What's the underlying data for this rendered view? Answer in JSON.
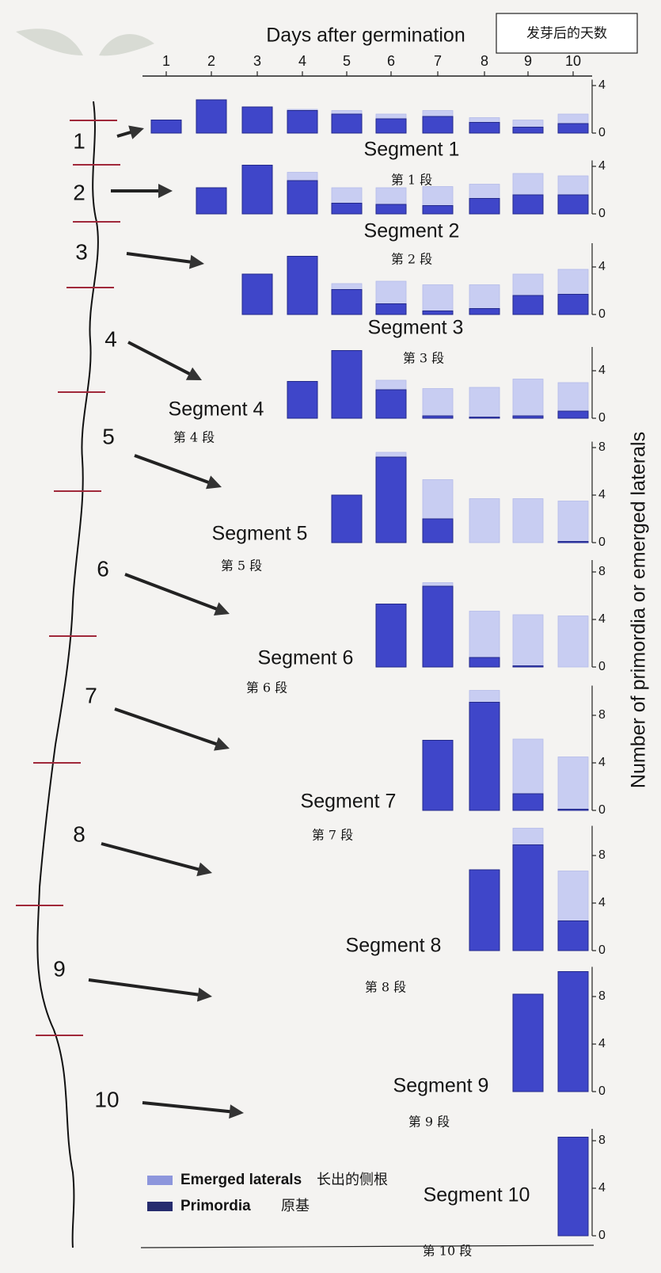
{
  "x_axis": {
    "label": "Days after germination",
    "label_cn": "发芽后的天数",
    "categories": [
      1,
      2,
      3,
      4,
      5,
      6,
      7,
      8,
      9,
      10
    ]
  },
  "y_axis_label": "Number of primordia or emerged laterals",
  "legend": [
    {
      "name": "Emerged laterals",
      "name_cn": "长出的侧根",
      "color": "#c8cdf2"
    },
    {
      "name": "Primordia",
      "name_cn": "原基",
      "color": "#3f46c9"
    }
  ],
  "root_segments": [
    1,
    2,
    3,
    4,
    5,
    6,
    7,
    8,
    9,
    10
  ],
  "chart_data": [
    {
      "type": "bar",
      "title": "Segment 1",
      "subtitle": "第 1 段",
      "ylim": [
        0,
        4.5
      ],
      "yticks": [
        0,
        4
      ],
      "series": [
        {
          "values": [
            1.1,
            2.8,
            2.2,
            1.9,
            1.6,
            1.2,
            1.4,
            0.9,
            0.5,
            0.8
          ]
        },
        {
          "values": [
            0,
            0,
            0,
            0.1,
            0.3,
            0.4,
            0.5,
            0.4,
            0.6,
            0.8
          ]
        }
      ]
    },
    {
      "type": "bar",
      "title": "Segment 2",
      "subtitle": "第 2 段",
      "ylim": [
        0,
        4.5
      ],
      "yticks": [
        0,
        4
      ],
      "series": [
        {
          "values": [
            null,
            2.2,
            4.1,
            2.8,
            0.9,
            0.8,
            0.7,
            1.3,
            1.6,
            1.6
          ]
        },
        {
          "values": [
            null,
            0,
            0,
            0.7,
            1.3,
            1.4,
            1.6,
            1.2,
            1.8,
            1.6
          ]
        }
      ]
    },
    {
      "type": "bar",
      "title": "Segment 3",
      "subtitle": "第 3 段",
      "ylim": [
        0,
        6
      ],
      "yticks": [
        0,
        4
      ],
      "series": [
        {
          "values": [
            null,
            null,
            3.4,
            4.9,
            2.1,
            0.9,
            0.3,
            0.5,
            1.6,
            1.7
          ]
        },
        {
          "values": [
            null,
            null,
            0,
            0,
            0.5,
            1.9,
            2.2,
            2.0,
            1.8,
            2.1
          ]
        }
      ]
    },
    {
      "type": "bar",
      "title": "Segment 4",
      "subtitle": "第 4 段",
      "ylim": [
        0,
        6
      ],
      "yticks": [
        0,
        4
      ],
      "series": [
        {
          "values": [
            null,
            null,
            null,
            3.1,
            5.7,
            2.4,
            0.2,
            0.1,
            0.2,
            0.6
          ]
        },
        {
          "values": [
            null,
            null,
            null,
            0,
            0,
            0.8,
            2.3,
            2.5,
            3.1,
            2.4
          ]
        }
      ]
    },
    {
      "type": "bar",
      "title": "Segment 5",
      "subtitle": "第 5 段",
      "ylim": [
        0,
        8.5
      ],
      "yticks": [
        0,
        4,
        8
      ],
      "series": [
        {
          "values": [
            null,
            null,
            null,
            null,
            4.0,
            7.2,
            2.0,
            0,
            0,
            0.1
          ]
        },
        {
          "values": [
            null,
            null,
            null,
            null,
            0,
            0.4,
            3.3,
            3.7,
            3.7,
            3.4
          ]
        }
      ]
    },
    {
      "type": "bar",
      "title": "Segment 6",
      "subtitle": "第 6 段",
      "ylim": [
        0,
        9
      ],
      "yticks": [
        0,
        4,
        8
      ],
      "series": [
        {
          "values": [
            null,
            null,
            null,
            null,
            null,
            5.3,
            6.8,
            0.8,
            0.1,
            0
          ]
        },
        {
          "values": [
            null,
            null,
            null,
            null,
            null,
            0,
            0.3,
            3.9,
            4.3,
            4.3
          ]
        }
      ]
    },
    {
      "type": "bar",
      "title": "Segment 7",
      "subtitle": "第 7 段",
      "ylim": [
        0,
        10.5
      ],
      "yticks": [
        0,
        4,
        8
      ],
      "series": [
        {
          "values": [
            null,
            null,
            null,
            null,
            null,
            null,
            5.9,
            9.1,
            1.4,
            0.1
          ]
        },
        {
          "values": [
            null,
            null,
            null,
            null,
            null,
            null,
            0,
            1.0,
            4.6,
            4.4
          ]
        }
      ]
    },
    {
      "type": "bar",
      "title": "Segment 8",
      "subtitle": "第 8 段",
      "ylim": [
        0,
        10.5
      ],
      "yticks": [
        0,
        4,
        8
      ],
      "series": [
        {
          "values": [
            null,
            null,
            null,
            null,
            null,
            null,
            null,
            6.8,
            8.9,
            2.5
          ]
        },
        {
          "values": [
            null,
            null,
            null,
            null,
            null,
            null,
            null,
            0,
            1.4,
            4.2
          ]
        }
      ]
    },
    {
      "type": "bar",
      "title": "Segment 9",
      "subtitle": "第 9 段",
      "ylim": [
        0,
        10.5
      ],
      "yticks": [
        0,
        4,
        8
      ],
      "series": [
        {
          "values": [
            null,
            null,
            null,
            null,
            null,
            null,
            null,
            null,
            8.2,
            10.1
          ]
        },
        {
          "values": [
            null,
            null,
            null,
            null,
            null,
            null,
            null,
            null,
            0,
            0
          ]
        }
      ]
    },
    {
      "type": "bar",
      "title": "Segment 10",
      "subtitle": "第 10 段",
      "ylim": [
        0,
        9
      ],
      "yticks": [
        0,
        4,
        8
      ],
      "series": [
        {
          "values": [
            null,
            null,
            null,
            null,
            null,
            null,
            null,
            null,
            null,
            8.3
          ]
        },
        {
          "values": [
            null,
            null,
            null,
            null,
            null,
            null,
            null,
            null,
            null,
            0
          ]
        }
      ]
    }
  ]
}
